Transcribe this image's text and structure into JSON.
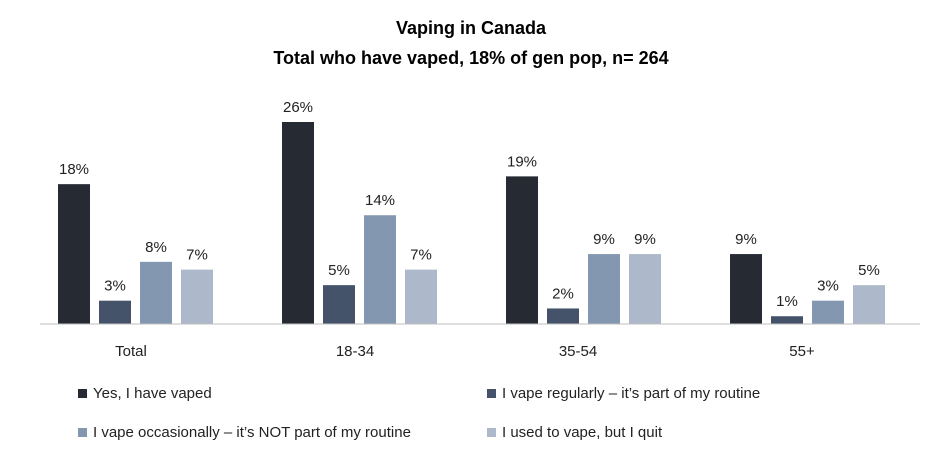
{
  "chart_data": {
    "type": "bar",
    "title": "Vaping in Canada",
    "subtitle": "Total who have vaped, 18% of gen pop, n= 264",
    "categories": [
      "Total",
      "18-34",
      "35-54",
      "55+"
    ],
    "series": [
      {
        "name": "Yes, I have vaped",
        "values": [
          18,
          26,
          19,
          9
        ],
        "color": "#252a33"
      },
      {
        "name": "I vape regularly – it’s part of my routine",
        "values": [
          3,
          5,
          2,
          1
        ],
        "color": "#44536a"
      },
      {
        "name": "I vape occasionally – it’s NOT part of my routine",
        "values": [
          8,
          14,
          9,
          3
        ],
        "color": "#8497b0"
      },
      {
        "name": "I used to vape, but I quit",
        "values": [
          7,
          7,
          9,
          5
        ],
        "color": "#adb9ca"
      }
    ],
    "value_suffix": "%",
    "ylim": [
      0,
      26
    ],
    "grid": false,
    "legend_position": "bottom"
  }
}
